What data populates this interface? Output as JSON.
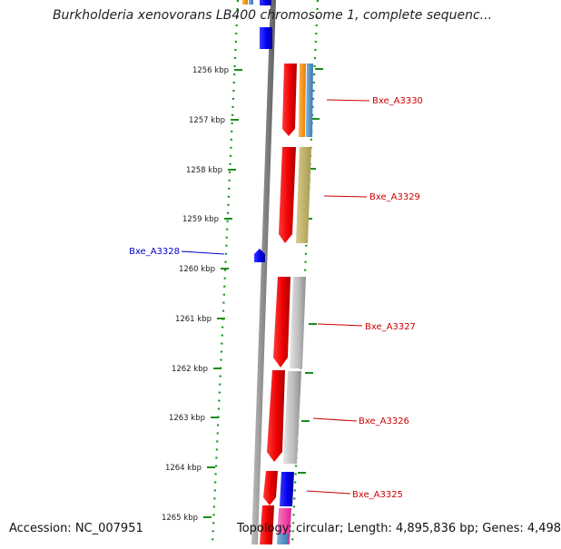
{
  "title": "Burkholderia xenovorans LB400 chromosome 1, complete sequenc...",
  "footer": {
    "accession": "Accession: NC_007951",
    "summary": "Topology: circular; Length: 4,895,836 bp; Genes: 4,498"
  },
  "ticks": [
    "1256 kbp",
    "1257 kbp",
    "1258 kbp",
    "1259 kbp",
    "1260 kbp",
    "1261 kbp",
    "1262 kbp",
    "1263 kbp",
    "1264 kbp",
    "1265 kbp"
  ],
  "genes": [
    {
      "label": "Bxe_A3330",
      "strand": "forward",
      "color": "#cc0000"
    },
    {
      "label": "Bxe_A3329",
      "strand": "forward",
      "color": "#cc0000"
    },
    {
      "label": "Bxe_A3328",
      "strand": "reverse",
      "color": "#0000cc"
    },
    {
      "label": "Bxe_A3327",
      "strand": "forward",
      "color": "#cc0000"
    },
    {
      "label": "Bxe_A3326",
      "strand": "forward",
      "color": "#cc0000"
    },
    {
      "label": "Bxe_A3325",
      "strand": "forward",
      "color": "#cc0000"
    }
  ]
}
